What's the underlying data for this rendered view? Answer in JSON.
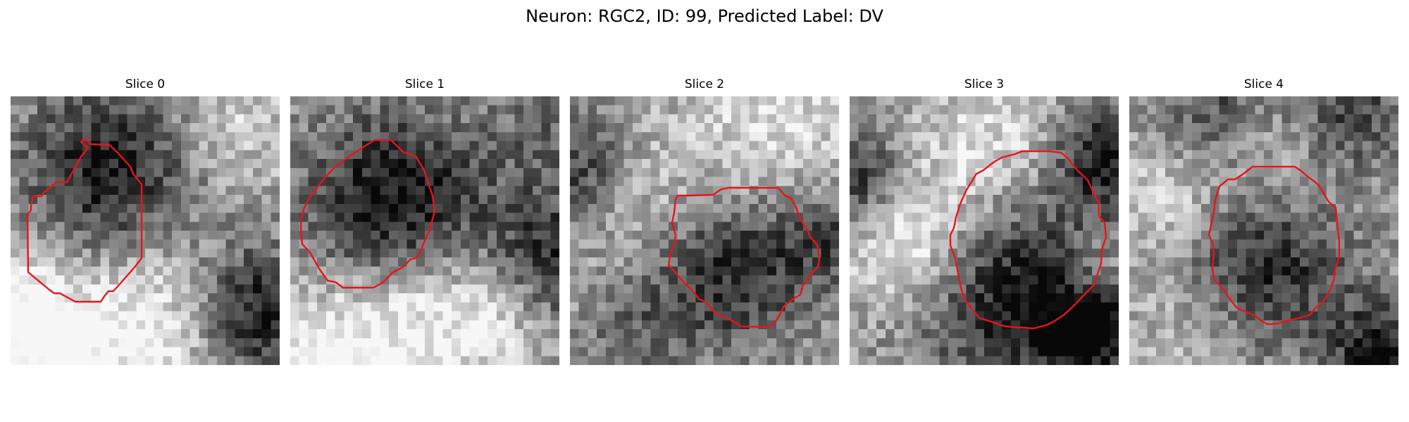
{
  "figure": {
    "title": "Neuron: RGC2, ID: 99, Predicted Label: DV"
  },
  "colors": {
    "background": "#ffffff",
    "contour": "#e8141b"
  },
  "panels": [
    {
      "title": "Slice 0"
    },
    {
      "title": "Slice 1"
    },
    {
      "title": "Slice 2"
    },
    {
      "title": "Slice 3"
    },
    {
      "title": "Slice 4"
    }
  ]
}
